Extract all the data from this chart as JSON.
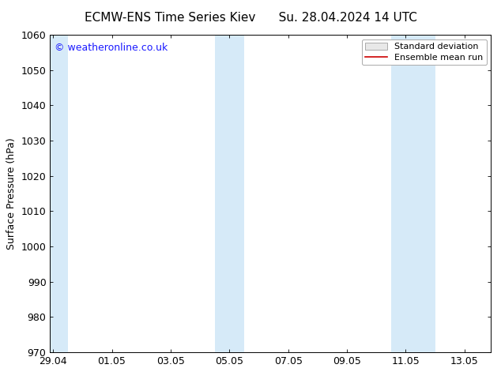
{
  "title_left": "ECMW-ENS Time Series Kiev",
  "title_right": "Su. 28.04.2024 14 UTC",
  "ylabel": "Surface Pressure (hPa)",
  "ylim": [
    970,
    1060
  ],
  "yticks": [
    970,
    980,
    990,
    1000,
    1010,
    1020,
    1030,
    1040,
    1050,
    1060
  ],
  "xtick_labels": [
    "29.04",
    "01.05",
    "03.05",
    "05.05",
    "07.05",
    "09.05",
    "11.05",
    "13.05"
  ],
  "x_positions": [
    0,
    2,
    4,
    6,
    8,
    10,
    12,
    14
  ],
  "x_min": -0.1,
  "x_max": 14.9,
  "shaded_regions": [
    {
      "x_start": -0.1,
      "x_end": 0.5
    },
    {
      "x_start": 5.5,
      "x_end": 6.5
    },
    {
      "x_start": 11.5,
      "x_end": 13.0
    }
  ],
  "shade_color": "#d6eaf8",
  "background_color": "#ffffff",
  "watermark_text": "© weatheronline.co.uk",
  "watermark_color": "#1a1aff",
  "legend_std_label": "Standard deviation",
  "legend_ens_label": "Ensemble mean run",
  "legend_std_facecolor": "#e8e8e8",
  "legend_std_edgecolor": "#aaaaaa",
  "legend_ens_color": "#cc0000",
  "title_fontsize": 11,
  "tick_fontsize": 9,
  "ylabel_fontsize": 9,
  "watermark_fontsize": 9,
  "legend_fontsize": 8
}
